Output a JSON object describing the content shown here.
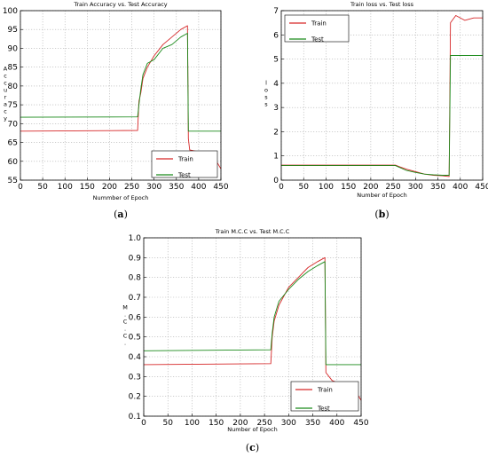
{
  "colors": {
    "train": "#d62728",
    "test": "#1a8a1a"
  },
  "chart_data": [
    {
      "type": "line",
      "panel": "(a)",
      "title": "Train Accuracy vs. Test Accuracy",
      "xlabel": "Nummber of Epoch",
      "ylabel": "Accuracy",
      "xlim": [
        0,
        450
      ],
      "ylim": [
        55,
        100
      ],
      "xticks": [
        0,
        50,
        100,
        150,
        200,
        250,
        300,
        350,
        400,
        450
      ],
      "yticks": [
        55,
        60,
        65,
        70,
        75,
        80,
        85,
        90,
        95,
        100
      ],
      "grid": true,
      "legend": "bottom-right",
      "series": [
        {
          "name": "Train",
          "points": [
            [
              0,
              68
            ],
            [
              263,
              68.2
            ],
            [
              266,
              76
            ],
            [
              270,
              78
            ],
            [
              275,
              82
            ],
            [
              285,
              85
            ],
            [
              300,
              88
            ],
            [
              320,
              91
            ],
            [
              340,
              93
            ],
            [
              360,
              95
            ],
            [
              375,
              96
            ],
            [
              377,
              66
            ],
            [
              380,
              63
            ],
            [
              420,
              62
            ],
            [
              440,
              60
            ],
            [
              450,
              58
            ]
          ]
        },
        {
          "name": "Test",
          "points": [
            [
              0,
              71.7
            ],
            [
              263,
              71.8
            ],
            [
              266,
              75
            ],
            [
              270,
              79
            ],
            [
              275,
              83
            ],
            [
              285,
              86
            ],
            [
              300,
              87
            ],
            [
              320,
              90
            ],
            [
              340,
              91
            ],
            [
              360,
              93
            ],
            [
              375,
              94
            ],
            [
              377,
              68
            ],
            [
              450,
              68
            ]
          ]
        }
      ]
    },
    {
      "type": "line",
      "panel": "(b)",
      "title": "Train loss vs. Test loss",
      "xlabel": "Number of Epoch",
      "ylabel": "loss",
      "xlim": [
        0,
        450
      ],
      "ylim": [
        0,
        7
      ],
      "xticks": [
        0,
        50,
        100,
        150,
        200,
        250,
        300,
        350,
        400,
        450
      ],
      "yticks": [
        0,
        1,
        2,
        3,
        4,
        5,
        6,
        7
      ],
      "grid": true,
      "legend": "top-left",
      "series": [
        {
          "name": "Train",
          "points": [
            [
              0,
              0.62
            ],
            [
              255,
              0.62
            ],
            [
              265,
              0.55
            ],
            [
              280,
              0.45
            ],
            [
              300,
              0.35
            ],
            [
              320,
              0.25
            ],
            [
              340,
              0.2
            ],
            [
              360,
              0.18
            ],
            [
              375,
              0.15
            ],
            [
              378,
              6.5
            ],
            [
              390,
              6.8
            ],
            [
              410,
              6.6
            ],
            [
              430,
              6.7
            ],
            [
              450,
              6.7
            ]
          ]
        },
        {
          "name": "Test",
          "points": [
            [
              0,
              0.6
            ],
            [
              255,
              0.6
            ],
            [
              265,
              0.52
            ],
            [
              280,
              0.4
            ],
            [
              300,
              0.32
            ],
            [
              320,
              0.25
            ],
            [
              340,
              0.22
            ],
            [
              360,
              0.2
            ],
            [
              375,
              0.2
            ],
            [
              378,
              5.15
            ],
            [
              450,
              5.15
            ]
          ]
        }
      ]
    },
    {
      "type": "line",
      "panel": "(c)",
      "title": "Train M.C.C vs. Test M.C.C",
      "xlabel": "Number of Epoch",
      "ylabel": "M.C.C.",
      "xlim": [
        0,
        450
      ],
      "ylim": [
        0.1,
        1.0
      ],
      "xticks": [
        0,
        50,
        100,
        150,
        200,
        250,
        300,
        350,
        400,
        450
      ],
      "yticks": [
        "0.1",
        "0.2",
        "0.3",
        "0.4",
        "0.5",
        "0.6",
        "0.7",
        "0.8",
        "0.9",
        "1.0"
      ],
      "grid": true,
      "legend": "bottom-right",
      "series": [
        {
          "name": "Train",
          "points": [
            [
              0,
              0.36
            ],
            [
              263,
              0.365
            ],
            [
              266,
              0.5
            ],
            [
              270,
              0.58
            ],
            [
              280,
              0.66
            ],
            [
              300,
              0.75
            ],
            [
              320,
              0.8
            ],
            [
              340,
              0.85
            ],
            [
              360,
              0.88
            ],
            [
              375,
              0.9
            ],
            [
              377,
              0.32
            ],
            [
              390,
              0.28
            ],
            [
              420,
              0.25
            ],
            [
              440,
              0.22
            ],
            [
              450,
              0.18
            ]
          ]
        },
        {
          "name": "Test",
          "points": [
            [
              0,
              0.43
            ],
            [
              263,
              0.435
            ],
            [
              266,
              0.52
            ],
            [
              270,
              0.6
            ],
            [
              280,
              0.68
            ],
            [
              300,
              0.74
            ],
            [
              320,
              0.79
            ],
            [
              340,
              0.83
            ],
            [
              360,
              0.86
            ],
            [
              375,
              0.88
            ],
            [
              377,
              0.36
            ],
            [
              450,
              0.36
            ]
          ]
        }
      ]
    }
  ]
}
